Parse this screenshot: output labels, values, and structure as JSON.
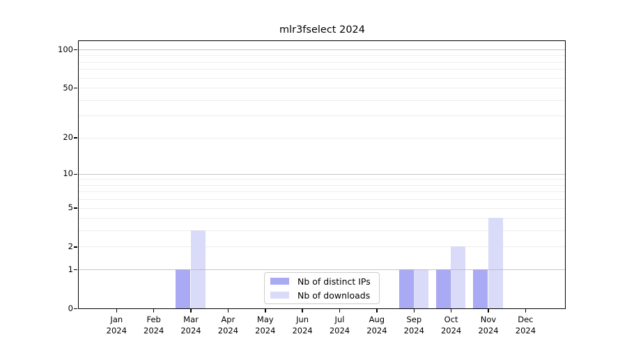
{
  "title": "mlr3fselect 2024",
  "legend": {
    "items": [
      {
        "label": "Nb of distinct IPs",
        "color": "#a9a9f4"
      },
      {
        "label": "Nb of downloads",
        "color": "#dadaf9"
      }
    ]
  },
  "axes": {
    "y_tick_labels": [
      "0",
      "1",
      "2",
      "5",
      "10",
      "20",
      "50",
      "100"
    ],
    "x_tick_months": [
      "Jan",
      "Feb",
      "Mar",
      "Apr",
      "May",
      "Jun",
      "Jul",
      "Aug",
      "Sep",
      "Oct",
      "Nov",
      "Dec"
    ],
    "x_tick_year": "2024"
  },
  "chart_data": {
    "type": "bar",
    "title": "mlr3fselect 2024",
    "categories": [
      "Jan 2024",
      "Feb 2024",
      "Mar 2024",
      "Apr 2024",
      "May 2024",
      "Jun 2024",
      "Jul 2024",
      "Aug 2024",
      "Sep 2024",
      "Oct 2024",
      "Nov 2024",
      "Dec 2024"
    ],
    "series": [
      {
        "name": "Nb of distinct IPs",
        "color": "#a9a9f4",
        "values": [
          0,
          0,
          1,
          0,
          0,
          0,
          0,
          0,
          1,
          1,
          1,
          0
        ]
      },
      {
        "name": "Nb of downloads",
        "color": "#dadaf9",
        "values": [
          0,
          0,
          3,
          0,
          0,
          0,
          0,
          0,
          1,
          2,
          4,
          0
        ]
      }
    ],
    "xlabel": "",
    "ylabel": "",
    "yscale": "log1p",
    "ylim": [
      0,
      116
    ],
    "yticks": [
      0,
      1,
      2,
      5,
      10,
      20,
      50,
      100
    ],
    "major_gridlines": [
      1,
      10,
      100
    ],
    "minor_gridlines": [
      2,
      3,
      4,
      5,
      6,
      7,
      8,
      9,
      20,
      30,
      40,
      50,
      60,
      70,
      80,
      90
    ],
    "grid": true,
    "legend_position": "lower center",
    "colors": {
      "major_grid": "#b3b3b3",
      "minor_grid": "#ededed",
      "spine": "#000000"
    }
  }
}
